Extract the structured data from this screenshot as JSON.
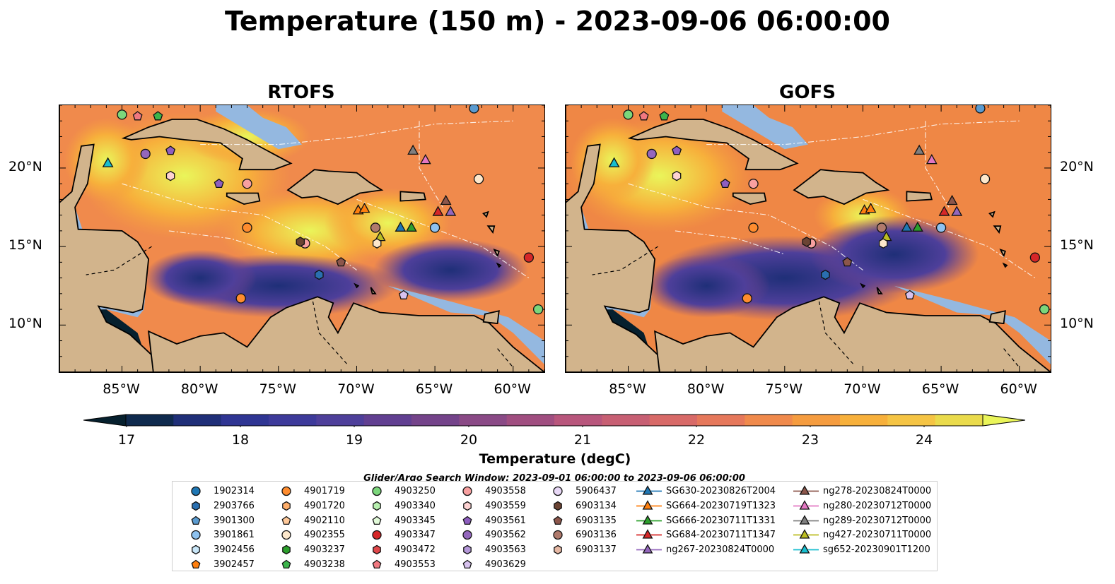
{
  "title": "Temperature (150 m) - 2023-09-06 06:00:00",
  "panels": [
    {
      "title": "RTOFS"
    },
    {
      "title": "GOFS"
    }
  ],
  "axes": {
    "lon_ticks": [
      "85°W",
      "80°W",
      "75°W",
      "70°W",
      "65°W",
      "60°W"
    ],
    "lat_ticks": [
      "20°N",
      "15°N",
      "10°N"
    ]
  },
  "colorbar": {
    "ticks": [
      "17",
      "18",
      "19",
      "20",
      "21",
      "22",
      "23",
      "24"
    ],
    "label": "Temperature (degC)",
    "colors": [
      "#06202e",
      "#0f2a4e",
      "#1f2f78",
      "#2f3593",
      "#3d3a9a",
      "#4e3f9a",
      "#613f91",
      "#74438a",
      "#8a4a86",
      "#a04e80",
      "#b8567c",
      "#c75f73",
      "#d86a68",
      "#e6785b",
      "#f08a4c",
      "#f59c3f",
      "#f7b03b",
      "#f5c444",
      "#eadb4c",
      "#eaf55a"
    ]
  },
  "search_window": "Glider/Argo Search Window: 2023-09-01 06:00:00 to 2023-09-06 06:00:00",
  "legend": {
    "columns": [
      [
        {
          "label": "1902314",
          "marker": "circle",
          "color": "#1f77b4"
        },
        {
          "label": "2903766",
          "marker": "hexagon",
          "color": "#2a6fb0"
        },
        {
          "label": "3901300",
          "marker": "pentagon",
          "color": "#5a9bd0"
        },
        {
          "label": "3901861",
          "marker": "circle",
          "color": "#8ec2ef"
        },
        {
          "label": "3902456",
          "marker": "hexagon",
          "color": "#c8e6f8"
        },
        {
          "label": "3902457",
          "marker": "pentagon",
          "color": "#ff7f0e"
        }
      ],
      [
        {
          "label": "4901719",
          "marker": "circle",
          "color": "#ff8c2e"
        },
        {
          "label": "4901720",
          "marker": "hexagon",
          "color": "#ffae6a"
        },
        {
          "label": "4902110",
          "marker": "pentagon",
          "color": "#ffc99a"
        },
        {
          "label": "4902355",
          "marker": "circle",
          "color": "#fde8cc"
        },
        {
          "label": "4903237",
          "marker": "hexagon",
          "color": "#2ca02c"
        },
        {
          "label": "4903238",
          "marker": "pentagon",
          "color": "#3cb44b"
        }
      ],
      [
        {
          "label": "4903250",
          "marker": "circle",
          "color": "#7bd67b"
        },
        {
          "label": "4903340",
          "marker": "hexagon",
          "color": "#b8f0b0"
        },
        {
          "label": "4903345",
          "marker": "pentagon",
          "color": "#e2fad9"
        },
        {
          "label": "4903347",
          "marker": "circle",
          "color": "#d62728"
        },
        {
          "label": "4903472",
          "marker": "hexagon",
          "color": "#e0474a"
        },
        {
          "label": "4903553",
          "marker": "pentagon",
          "color": "#f07880"
        }
      ],
      [
        {
          "label": "4903558",
          "marker": "circle",
          "color": "#f8a0a0"
        },
        {
          "label": "4903559",
          "marker": "hexagon",
          "color": "#fdd2d2"
        },
        {
          "label": "4903561",
          "marker": "pentagon",
          "color": "#8e5ebf"
        },
        {
          "label": "4903562",
          "marker": "circle",
          "color": "#9467bd"
        },
        {
          "label": "4903563",
          "marker": "hexagon",
          "color": "#b497d8"
        },
        {
          "label": "4903629",
          "marker": "pentagon",
          "color": "#d7c2ee"
        }
      ],
      [
        {
          "label": "5906437",
          "marker": "circle",
          "color": "#e8d8f6"
        },
        {
          "label": "6903134",
          "marker": "hexagon",
          "color": "#6b4433"
        },
        {
          "label": "6903135",
          "marker": "pentagon",
          "color": "#8c564b"
        },
        {
          "label": "6903136",
          "marker": "circle",
          "color": "#b07a6c"
        },
        {
          "label": "6903137",
          "marker": "hexagon",
          "color": "#e6b8a4"
        }
      ],
      [
        {
          "label": "SG630-20230826T2004",
          "marker": "triangle",
          "color": "#1f77b4"
        },
        {
          "label": "SG664-20230719T1323",
          "marker": "triangle",
          "color": "#ff7f0e"
        },
        {
          "label": "SG666-20230711T1331",
          "marker": "triangle",
          "color": "#2ca02c"
        },
        {
          "label": "SG684-20230711T1347",
          "marker": "triangle",
          "color": "#d62728"
        },
        {
          "label": "ng267-20230824T0000",
          "marker": "triangle",
          "color": "#9467bd"
        }
      ],
      [
        {
          "label": "ng278-20230824T0000",
          "marker": "triangle",
          "color": "#8c564b"
        },
        {
          "label": "ng280-20230712T0000",
          "marker": "triangle",
          "color": "#e377c2"
        },
        {
          "label": "ng289-20230712T0000",
          "marker": "triangle",
          "color": "#7f7f7f"
        },
        {
          "label": "ng427-20230711T0000",
          "marker": "triangle",
          "color": "#bcbd22"
        },
        {
          "label": "sg652-20230901T1200",
          "marker": "triangle",
          "color": "#17becf"
        }
      ]
    ]
  },
  "markers": [
    {
      "lon": -85.0,
      "lat": 23.4,
      "marker": "circle",
      "color": "#7bd67b"
    },
    {
      "lon": -84.0,
      "lat": 23.3,
      "marker": "pentagon",
      "color": "#f07880"
    },
    {
      "lon": -82.7,
      "lat": 23.3,
      "marker": "pentagon",
      "color": "#3cb44b"
    },
    {
      "lon": -85.9,
      "lat": 20.3,
      "marker": "triangle",
      "color": "#17becf"
    },
    {
      "lon": -83.5,
      "lat": 20.9,
      "marker": "circle",
      "color": "#9467bd"
    },
    {
      "lon": -81.9,
      "lat": 21.1,
      "marker": "pentagon",
      "color": "#8e5ebf"
    },
    {
      "lon": -81.9,
      "lat": 19.5,
      "marker": "hexagon",
      "color": "#fdd2d2"
    },
    {
      "lon": -78.8,
      "lat": 19.0,
      "marker": "pentagon",
      "color": "#8e5ebf"
    },
    {
      "lon": -77.0,
      "lat": 19.0,
      "marker": "circle",
      "color": "#f8a0a0"
    },
    {
      "lon": -77.0,
      "lat": 16.2,
      "marker": "circle",
      "color": "#ff8c2e"
    },
    {
      "lon": -73.3,
      "lat": 15.2,
      "marker": "circle",
      "color": "#f8a0a0"
    },
    {
      "lon": -73.6,
      "lat": 15.3,
      "marker": "hexagon",
      "color": "#6b4433"
    },
    {
      "lon": -72.4,
      "lat": 13.2,
      "marker": "hexagon",
      "color": "#2a6fb0"
    },
    {
      "lon": -71.0,
      "lat": 14.0,
      "marker": "pentagon",
      "color": "#8c564b"
    },
    {
      "lon": -77.4,
      "lat": 11.7,
      "marker": "circle",
      "color": "#ff8c2e"
    },
    {
      "lon": -69.9,
      "lat": 17.3,
      "marker": "triangle",
      "color": "#ff7f0e"
    },
    {
      "lon": -69.5,
      "lat": 17.4,
      "marker": "triangle",
      "color": "#ff7f0e"
    },
    {
      "lon": -68.8,
      "lat": 16.2,
      "marker": "circle",
      "color": "#b07a6c"
    },
    {
      "lon": -68.5,
      "lat": 15.6,
      "marker": "triangle",
      "color": "#bcbd22"
    },
    {
      "lon": -68.7,
      "lat": 15.2,
      "marker": "hexagon",
      "color": "#fde8cc"
    },
    {
      "lon": -67.2,
      "lat": 16.2,
      "marker": "triangle",
      "color": "#1f77b4"
    },
    {
      "lon": -66.5,
      "lat": 16.2,
      "marker": "triangle",
      "color": "#2ca02c"
    },
    {
      "lon": -66.4,
      "lat": 21.1,
      "marker": "triangle",
      "color": "#7f7f7f"
    },
    {
      "lon": -65.6,
      "lat": 20.5,
      "marker": "triangle",
      "color": "#e377c2"
    },
    {
      "lon": -64.0,
      "lat": 17.2,
      "marker": "triangle",
      "color": "#9467bd"
    },
    {
      "lon": -64.8,
      "lat": 17.2,
      "marker": "triangle",
      "color": "#d62728"
    },
    {
      "lon": -64.3,
      "lat": 17.9,
      "marker": "triangle",
      "color": "#8c564b"
    },
    {
      "lon": -65.0,
      "lat": 16.2,
      "marker": "circle",
      "color": "#8ec2ef"
    },
    {
      "lon": -67.0,
      "lat": 11.9,
      "marker": "pentagon",
      "color": "#d7c2ee"
    },
    {
      "lon": -62.2,
      "lat": 19.3,
      "marker": "circle",
      "color": "#fde8cc"
    },
    {
      "lon": -62.5,
      "lat": 23.8,
      "marker": "circle",
      "color": "#5a9bd0"
    },
    {
      "lon": -59.0,
      "lat": 14.3,
      "marker": "circle",
      "color": "#d62728"
    },
    {
      "lon": -58.4,
      "lat": 11.0,
      "marker": "circle",
      "color": "#7bd67b"
    }
  ]
}
